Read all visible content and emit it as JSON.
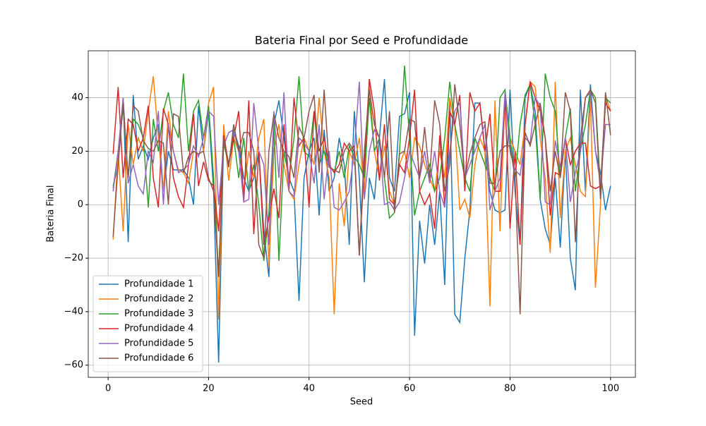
{
  "chart_data": {
    "type": "line",
    "title": "Bateria Final por Seed e Profundidade",
    "xlabel": "Seed",
    "ylabel": "Bateria Final",
    "x": [
      1,
      2,
      3,
      4,
      5,
      6,
      7,
      8,
      9,
      10,
      11,
      12,
      13,
      14,
      15,
      16,
      17,
      18,
      19,
      20,
      21,
      22,
      23,
      24,
      25,
      26,
      27,
      28,
      29,
      30,
      31,
      32,
      33,
      34,
      35,
      36,
      37,
      38,
      39,
      40,
      41,
      42,
      43,
      44,
      45,
      46,
      47,
      48,
      49,
      50,
      51,
      52,
      53,
      54,
      55,
      56,
      57,
      58,
      59,
      60,
      61,
      62,
      63,
      64,
      65,
      66,
      67,
      68,
      69,
      70,
      71,
      72,
      73,
      74,
      75,
      76,
      77,
      78,
      79,
      80,
      81,
      82,
      83,
      84,
      85,
      86,
      87,
      88,
      89,
      90,
      91,
      92,
      93,
      94,
      95,
      96,
      97,
      98,
      99,
      100
    ],
    "series": [
      {
        "name": "Profundidade 1",
        "color": "#1f77b4",
        "values": [
          7,
          15,
          40,
          -14,
          41,
          17,
          22,
          17,
          25,
          30,
          5,
          20,
          13,
          13,
          13,
          10,
          0,
          37,
          20,
          35,
          5,
          -59,
          25,
          15,
          28,
          22,
          10,
          5,
          10,
          20,
          -10,
          -27,
          30,
          39,
          25,
          10,
          5,
          -36,
          10,
          20,
          25,
          -4,
          28,
          5,
          10,
          25,
          15,
          -15,
          35,
          10,
          -29,
          10,
          2,
          25,
          47,
          10,
          5,
          33,
          34,
          42,
          -49,
          -6,
          -22,
          0,
          -15,
          5,
          -30,
          40,
          -41,
          -44,
          -20,
          -2,
          38,
          38,
          20,
          5,
          -2,
          -3,
          -2,
          43,
          5,
          -15,
          40,
          45,
          35,
          2,
          -9,
          -15,
          10,
          -16,
          20,
          -20,
          -32,
          43,
          5,
          45,
          20,
          12,
          -2,
          7
        ]
      },
      {
        "name": "Profundidade 2",
        "color": "#ff7f0e",
        "values": [
          -13,
          20,
          -10,
          30,
          15,
          25,
          20,
          35,
          48,
          25,
          5,
          35,
          20,
          13,
          12,
          8,
          20,
          19,
          20,
          38,
          44,
          -43,
          30,
          9,
          25,
          20,
          5,
          20,
          10,
          25,
          32,
          -23,
          20,
          30,
          15,
          5,
          2,
          15,
          25,
          20,
          15,
          40,
          20,
          10,
          -41,
          8,
          -8,
          20,
          15,
          25,
          5,
          45,
          20,
          10,
          22,
          5,
          0,
          15,
          20,
          10,
          25,
          22,
          15,
          10,
          5,
          20,
          10,
          40,
          30,
          -2,
          2,
          -5,
          15,
          25,
          20,
          -38,
          39,
          -10,
          40,
          25,
          20,
          15,
          30,
          46,
          44,
          25,
          10,
          -18,
          46,
          -5,
          20,
          25,
          15,
          5,
          3,
          40,
          -31,
          0,
          41,
          35
        ]
      },
      {
        "name": "Profundidade 3",
        "color": "#2ca02c",
        "values": [
          6,
          20,
          36,
          10,
          32,
          30,
          25,
          -1,
          32,
          20,
          35,
          42,
          30,
          25,
          49,
          20,
          35,
          39,
          25,
          37,
          10,
          -26,
          23,
          15,
          25,
          10,
          25,
          5,
          15,
          0,
          -21,
          -3,
          30,
          -21,
          20,
          10,
          25,
          48,
          20,
          18,
          35,
          15,
          20,
          15,
          12,
          20,
          10,
          22,
          18,
          15,
          10,
          40,
          20,
          25,
          10,
          -5,
          -3,
          20,
          52,
          25,
          -4,
          5,
          10,
          15,
          5,
          10,
          25,
          46,
          30,
          20,
          10,
          5,
          25,
          20,
          15,
          10,
          5,
          40,
          43,
          25,
          10,
          30,
          41,
          45,
          30,
          2,
          49,
          40,
          35,
          10,
          25,
          36,
          5,
          20,
          30,
          43,
          40,
          5,
          40,
          38
        ]
      },
      {
        "name": "Profundidade 4",
        "color": "#d62728",
        "values": [
          19,
          44,
          10,
          32,
          30,
          20,
          25,
          37,
          10,
          -1,
          36,
          30,
          10,
          3,
          -1,
          15,
          34,
          7,
          16,
          9,
          7,
          -10,
          26,
          15,
          25,
          35,
          1,
          39,
          -11,
          20,
          -15,
          -5,
          6,
          -5,
          30,
          5,
          40,
          22,
          25,
          -1,
          35,
          20,
          25,
          15,
          12,
          15,
          23,
          20,
          22,
          -19,
          15,
          47,
          35,
          9,
          30,
          2,
          0,
          15,
          12,
          25,
          43,
          5,
          0,
          4,
          -9,
          26,
          -1,
          35,
          30,
          41,
          5,
          42,
          35,
          38,
          20,
          34,
          5,
          5,
          40,
          -9,
          20,
          -15,
          30,
          46,
          40,
          35,
          25,
          -4,
          12,
          11,
          25,
          15,
          20,
          23,
          23,
          7,
          6,
          7,
          38,
          35
        ]
      },
      {
        "name": "Profundidade 5",
        "color": "#9467bd",
        "values": [
          5,
          20,
          40,
          8,
          15,
          7,
          4,
          20,
          16,
          35,
          0,
          30,
          20,
          12,
          13,
          15,
          22,
          18,
          25,
          35,
          33,
          0,
          22,
          27,
          28,
          20,
          1,
          2,
          38,
          20,
          15,
          -15,
          35,
          10,
          42,
          5,
          3,
          25,
          23,
          20,
          8,
          30,
          2,
          20,
          -1,
          -2,
          1,
          5,
          20,
          46,
          2,
          20,
          28,
          25,
          0,
          1,
          -2,
          1,
          10,
          20,
          15,
          10,
          20,
          8,
          20,
          5,
          -1,
          20,
          35,
          38,
          10,
          15,
          20,
          25,
          30,
          -2,
          5,
          10,
          42,
          20,
          13,
          11,
          25,
          23,
          40,
          37,
          1,
          0,
          24,
          14,
          25,
          1,
          12,
          20,
          40,
          42,
          20,
          8,
          30,
          30
        ]
      },
      {
        "name": "Profundidade 6",
        "color": "#8c564b",
        "values": [
          -12,
          15,
          38,
          10,
          37,
          35,
          24,
          21,
          20,
          24,
          23,
          0,
          34,
          33,
          12,
          18,
          20,
          19,
          20,
          10,
          5,
          -27,
          25,
          14,
          30,
          20,
          27,
          27,
          20,
          -15,
          -20,
          20,
          34,
          25,
          20,
          18,
          10,
          29,
          25,
          35,
          41,
          12,
          43,
          14,
          13,
          12,
          20,
          23,
          20,
          -19,
          20,
          43,
          30,
          25,
          10,
          35,
          -3,
          19,
          20,
          32,
          31,
          10,
          29,
          10,
          39,
          30,
          5,
          15,
          45,
          30,
          10,
          19,
          25,
          30,
          31,
          8,
          8,
          20,
          22,
          22,
          10,
          -41,
          27,
          22,
          30,
          38,
          25,
          5,
          20,
          10,
          42,
          35,
          -14,
          25,
          40,
          43,
          38,
          2,
          42,
          26
        ]
      }
    ],
    "xlim": [
      -3.95,
      104.95
    ],
    "xticks": [
      0,
      20,
      40,
      60,
      80,
      100
    ],
    "ylim": [
      -64.55,
      57.55
    ],
    "yticks": [
      {
        "value": -60,
        "label": "−60"
      },
      {
        "value": -40,
        "label": "−40"
      },
      {
        "value": -20,
        "label": "−20"
      },
      0,
      20,
      40
    ],
    "grid": true,
    "legend": "lower left"
  }
}
